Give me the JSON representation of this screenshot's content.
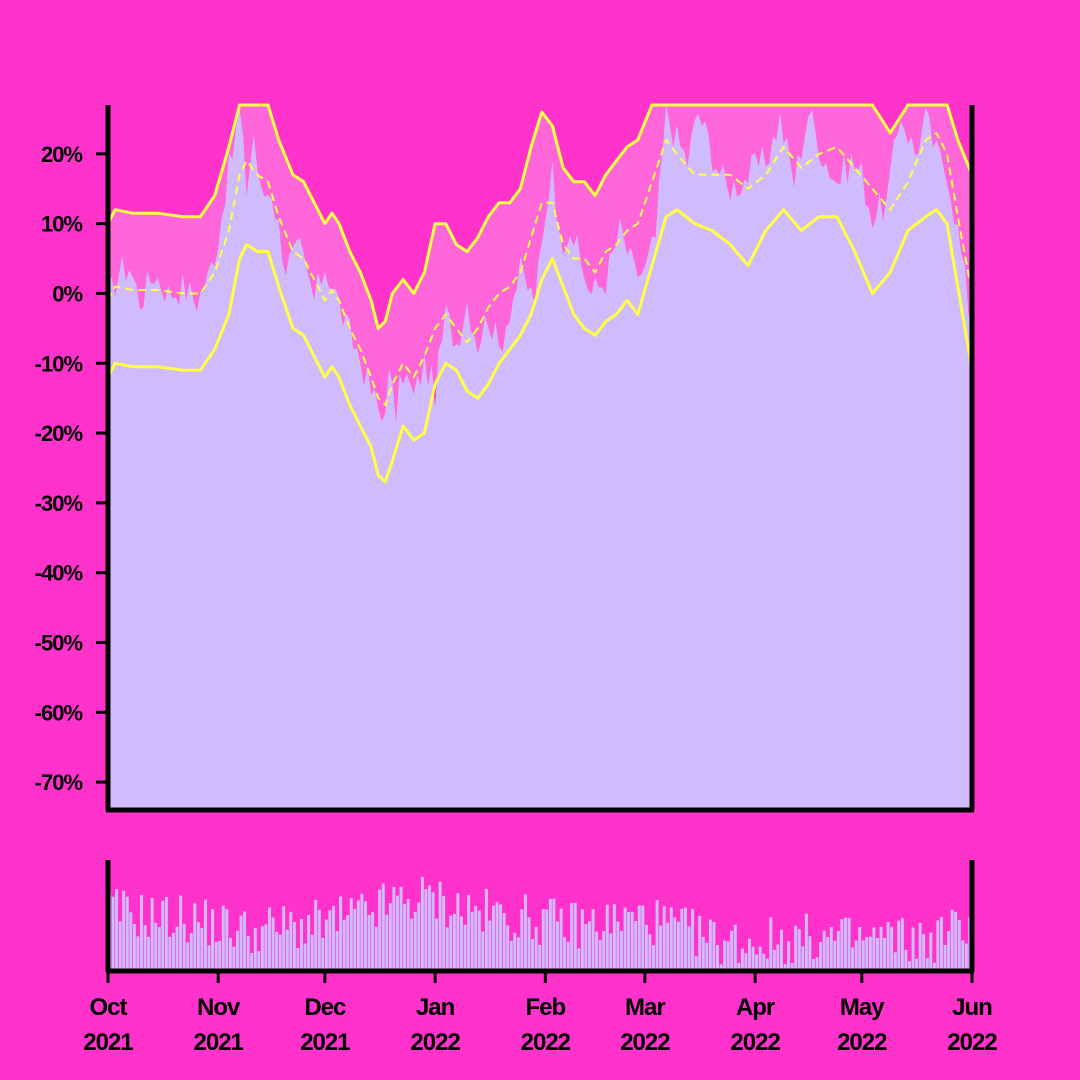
{
  "colors": {
    "background": "#ff33cc",
    "fill_area": "#d0bbff",
    "band_fill": "#ff66d9",
    "band_line": "#ffff44",
    "axis": "#000000"
  },
  "chart_data": [
    {
      "type": "area",
      "panel": "price",
      "title": "",
      "xlabel": "",
      "ylabel": "",
      "ylim": [
        -74,
        27
      ],
      "yticks": [
        -70,
        -60,
        -50,
        -40,
        -30,
        -20,
        -10,
        0,
        10,
        20
      ],
      "ytick_labels": [
        "-70%",
        "-60%",
        "-50%",
        "-40%",
        "-30%",
        "-20%",
        "-10%",
        "0%",
        "10%",
        "20%"
      ],
      "xlim": [
        "2021-10-01",
        "2022-06-01"
      ],
      "xticks": [
        "2021-10-01",
        "2021-11-01",
        "2021-12-01",
        "2022-01-01",
        "2022-02-01",
        "2022-03-01",
        "2022-04-01",
        "2022-05-01",
        "2022-06-01"
      ],
      "xtick_labels": [
        [
          "Oct",
          "2021"
        ],
        [
          "Nov",
          "2021"
        ],
        [
          "Dec",
          "2021"
        ],
        [
          "Jan",
          "2022"
        ],
        [
          "Feb",
          "2022"
        ],
        [
          "Mar",
          "2022"
        ],
        [
          "Apr",
          "2022"
        ],
        [
          "May",
          "2022"
        ],
        [
          "Jun",
          "2022"
        ]
      ],
      "grid": false,
      "legend": "none",
      "band_cap": 27,
      "series": [
        {
          "role": "value",
          "style": "filled area",
          "x": [
            "2021-10-01",
            "2021-10-04",
            "2021-10-07",
            "2021-10-10",
            "2021-10-14",
            "2021-10-18",
            "2021-10-22",
            "2021-10-26",
            "2021-10-29",
            "2021-11-01",
            "2021-11-03",
            "2021-11-05",
            "2021-11-07",
            "2021-11-09",
            "2021-11-11",
            "2021-11-13",
            "2021-11-16",
            "2021-11-20",
            "2021-11-24",
            "2021-11-28",
            "2021-12-01",
            "2021-12-04",
            "2021-12-07",
            "2021-12-10",
            "2021-12-14",
            "2021-12-17",
            "2021-12-19",
            "2021-12-21",
            "2021-12-23",
            "2021-12-26",
            "2021-12-29",
            "2022-01-01",
            "2022-01-04",
            "2022-01-07",
            "2022-01-10",
            "2022-01-13",
            "2022-01-16",
            "2022-01-19",
            "2022-01-22",
            "2022-01-25",
            "2022-01-29",
            "2022-02-01",
            "2022-02-03",
            "2022-02-05",
            "2022-02-08",
            "2022-02-11",
            "2022-02-14",
            "2022-02-18",
            "2022-02-22",
            "2022-02-26",
            "2022-03-01",
            "2022-03-04",
            "2022-03-07",
            "2022-03-10",
            "2022-03-13",
            "2022-03-16",
            "2022-03-20",
            "2022-03-24",
            "2022-03-28",
            "2022-04-01",
            "2022-04-04",
            "2022-04-08",
            "2022-04-12",
            "2022-04-16",
            "2022-04-20",
            "2022-04-24",
            "2022-04-28",
            "2022-05-01",
            "2022-05-04",
            "2022-05-08",
            "2022-05-12",
            "2022-05-16",
            "2022-05-19",
            "2022-05-22",
            "2022-05-25",
            "2022-05-28",
            "2022-06-01"
          ],
          "y": [
            -1,
            3,
            4,
            -1,
            3,
            0,
            1,
            -1,
            2,
            8,
            15,
            20,
            26,
            15,
            23,
            14,
            15,
            4,
            6,
            -1,
            4,
            0,
            -5,
            -8,
            -14,
            -18,
            -12,
            -17,
            -11,
            -15,
            -10,
            -14,
            -3,
            -7,
            -1,
            -7,
            -3,
            -8,
            -2,
            3,
            -1,
            10,
            20,
            7,
            10,
            4,
            0,
            2,
            9,
            3,
            3,
            8,
            26,
            22,
            19,
            26,
            20,
            15,
            16,
            18,
            19,
            25,
            16,
            26,
            20,
            16,
            19,
            17,
            11,
            13,
            26,
            20,
            25,
            20,
            18,
            9,
            -5
          ]
        },
        {
          "role": "upper band",
          "style": "solid line",
          "x": [
            "2021-10-01",
            "2021-10-03",
            "2021-10-08",
            "2021-10-15",
            "2021-10-22",
            "2021-10-27",
            "2021-10-31",
            "2021-11-04",
            "2021-11-07",
            "2021-11-09",
            "2021-11-12",
            "2021-11-15",
            "2021-11-18",
            "2021-11-22",
            "2021-11-25",
            "2021-11-28",
            "2021-12-01",
            "2021-12-03",
            "2021-12-05",
            "2021-12-08",
            "2021-12-11",
            "2021-12-14",
            "2021-12-16",
            "2021-12-18",
            "2021-12-20",
            "2021-12-23",
            "2021-12-26",
            "2021-12-29",
            "2022-01-01",
            "2022-01-04",
            "2022-01-07",
            "2022-01-10",
            "2022-01-13",
            "2022-01-16",
            "2022-01-19",
            "2022-01-22",
            "2022-01-25",
            "2022-01-28",
            "2022-01-31",
            "2022-02-03",
            "2022-02-06",
            "2022-02-09",
            "2022-02-12",
            "2022-02-15",
            "2022-02-18",
            "2022-02-21",
            "2022-02-24",
            "2022-02-27",
            "2022-03-03",
            "2022-03-07",
            "2022-03-10",
            "2022-03-15",
            "2022-03-20",
            "2022-03-25",
            "2022-03-30",
            "2022-04-04",
            "2022-04-09",
            "2022-04-14",
            "2022-04-19",
            "2022-04-24",
            "2022-04-29",
            "2022-05-04",
            "2022-05-09",
            "2022-05-14",
            "2022-05-19",
            "2022-05-22",
            "2022-05-25",
            "2022-05-28",
            "2022-06-01"
          ],
          "y": [
            10,
            12,
            11.5,
            11.5,
            11,
            11,
            14,
            21,
            27,
            27,
            27,
            27,
            22,
            17,
            16,
            13,
            10,
            11.5,
            10,
            6,
            3,
            -1,
            -5,
            -4,
            0,
            2,
            0,
            3,
            10,
            10,
            7,
            6,
            8,
            11,
            13,
            13,
            15,
            21,
            26,
            24,
            18,
            16,
            16,
            14,
            17,
            19,
            21,
            22,
            27,
            27,
            27,
            27,
            27,
            27,
            27,
            27,
            27,
            27,
            27,
            27,
            27,
            27,
            23,
            27,
            27,
            27,
            27,
            22,
            17
          ]
        },
        {
          "role": "middle band",
          "style": "dashed line",
          "x": [
            "2021-10-01",
            "2021-10-03",
            "2021-10-08",
            "2021-10-15",
            "2021-10-22",
            "2021-10-27",
            "2021-10-31",
            "2021-11-04",
            "2021-11-07",
            "2021-11-09",
            "2021-11-12",
            "2021-11-15",
            "2021-11-18",
            "2021-11-22",
            "2021-11-25",
            "2021-11-28",
            "2021-12-01",
            "2021-12-03",
            "2021-12-05",
            "2021-12-08",
            "2021-12-11",
            "2021-12-14",
            "2021-12-16",
            "2021-12-18",
            "2021-12-20",
            "2021-12-23",
            "2021-12-26",
            "2021-12-29",
            "2022-01-01",
            "2022-01-04",
            "2022-01-07",
            "2022-01-10",
            "2022-01-13",
            "2022-01-16",
            "2022-01-19",
            "2022-01-22",
            "2022-01-25",
            "2022-01-28",
            "2022-01-31",
            "2022-02-03",
            "2022-02-06",
            "2022-02-09",
            "2022-02-12",
            "2022-02-15",
            "2022-02-18",
            "2022-02-21",
            "2022-02-24",
            "2022-02-27",
            "2022-03-03",
            "2022-03-07",
            "2022-03-10",
            "2022-03-15",
            "2022-03-20",
            "2022-03-25",
            "2022-03-30",
            "2022-04-04",
            "2022-04-09",
            "2022-04-14",
            "2022-04-19",
            "2022-04-24",
            "2022-04-29",
            "2022-05-04",
            "2022-05-09",
            "2022-05-14",
            "2022-05-19",
            "2022-05-22",
            "2022-05-25",
            "2022-05-28",
            "2022-06-01"
          ],
          "y": [
            -1,
            1,
            0.5,
            0.5,
            0,
            0,
            3,
            9,
            17,
            19,
            17,
            16,
            11,
            6,
            5,
            2,
            -1,
            0.5,
            -1,
            -5,
            -8,
            -12,
            -15,
            -16,
            -13,
            -10,
            -12,
            -9,
            -5,
            -3,
            -5,
            -7,
            -5,
            -2,
            0,
            1,
            3,
            8,
            13,
            13,
            7,
            5,
            5,
            3,
            6,
            7,
            9,
            10,
            16,
            22,
            20,
            17,
            17,
            17,
            15,
            17,
            21,
            18,
            20,
            21,
            18,
            15,
            12,
            16,
            22,
            23,
            20,
            11,
            0
          ]
        },
        {
          "role": "lower band",
          "style": "solid line",
          "x": [
            "2021-10-01",
            "2021-10-03",
            "2021-10-08",
            "2021-10-15",
            "2021-10-22",
            "2021-10-27",
            "2021-10-31",
            "2021-11-04",
            "2021-11-07",
            "2021-11-09",
            "2021-11-12",
            "2021-11-15",
            "2021-11-18",
            "2021-11-22",
            "2021-11-25",
            "2021-11-28",
            "2021-12-01",
            "2021-12-03",
            "2021-12-05",
            "2021-12-08",
            "2021-12-11",
            "2021-12-14",
            "2021-12-16",
            "2021-12-18",
            "2021-12-20",
            "2021-12-23",
            "2021-12-26",
            "2021-12-29",
            "2022-01-01",
            "2022-01-04",
            "2022-01-07",
            "2022-01-10",
            "2022-01-13",
            "2022-01-16",
            "2022-01-19",
            "2022-01-22",
            "2022-01-25",
            "2022-01-28",
            "2022-01-31",
            "2022-02-03",
            "2022-02-06",
            "2022-02-09",
            "2022-02-12",
            "2022-02-15",
            "2022-02-18",
            "2022-02-21",
            "2022-02-24",
            "2022-02-27",
            "2022-03-03",
            "2022-03-07",
            "2022-03-10",
            "2022-03-15",
            "2022-03-20",
            "2022-03-25",
            "2022-03-30",
            "2022-04-04",
            "2022-04-09",
            "2022-04-14",
            "2022-04-19",
            "2022-04-24",
            "2022-04-29",
            "2022-05-04",
            "2022-05-09",
            "2022-05-14",
            "2022-05-19",
            "2022-05-22",
            "2022-05-25",
            "2022-05-28",
            "2022-06-01"
          ],
          "y": [
            -12,
            -10,
            -10.5,
            -10.5,
            -11,
            -11,
            -8,
            -3,
            5,
            7,
            6,
            6,
            1,
            -5,
            -6,
            -9,
            -12,
            -10.5,
            -12,
            -16,
            -19,
            -22,
            -26,
            -27,
            -24,
            -19,
            -21,
            -20,
            -13,
            -10,
            -11,
            -14,
            -15,
            -13,
            -10,
            -8,
            -6,
            -3,
            2,
            5,
            1,
            -3,
            -5,
            -6,
            -4,
            -3,
            -1,
            -3,
            4,
            11,
            12,
            10,
            9,
            7,
            4,
            9,
            12,
            9,
            11,
            11,
            6,
            0,
            3,
            9,
            11,
            12,
            10,
            1,
            -11
          ]
        }
      ]
    },
    {
      "type": "bar",
      "panel": "volume",
      "title": "",
      "xlabel": "",
      "ylabel": "",
      "ylim": [
        0,
        1
      ],
      "xlim": [
        "2021-10-01",
        "2022-06-01"
      ],
      "grid": false,
      "legend": "none",
      "series": [
        {
          "x": [
            "2021-10-01",
            "2021-10-11",
            "2021-10-21",
            "2021-10-31",
            "2021-11-10",
            "2021-11-20",
            "2021-11-30",
            "2021-12-10",
            "2021-12-20",
            "2021-12-30",
            "2022-01-09",
            "2022-01-19",
            "2022-01-29",
            "2022-02-08",
            "2022-02-18",
            "2022-02-28",
            "2022-03-10",
            "2022-03-20",
            "2022-03-30",
            "2022-04-09",
            "2022-04-19",
            "2022-04-29",
            "2022-05-09",
            "2022-05-19",
            "2022-05-29",
            "2022-06-01"
          ],
          "values": [
            0.55,
            0.5,
            0.48,
            0.42,
            0.36,
            0.4,
            0.42,
            0.5,
            0.62,
            0.66,
            0.55,
            0.5,
            0.46,
            0.42,
            0.44,
            0.48,
            0.38,
            0.28,
            0.26,
            0.28,
            0.3,
            0.28,
            0.3,
            0.26,
            0.42,
            0.45
          ]
        }
      ]
    }
  ]
}
